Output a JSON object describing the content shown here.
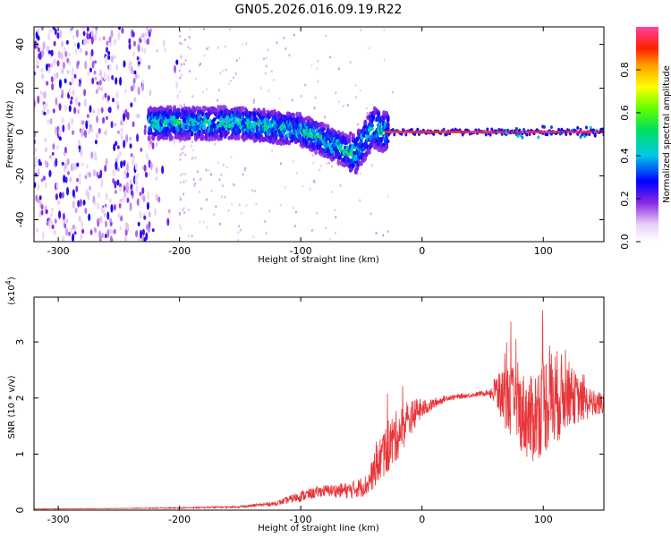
{
  "title": "GN05.2026.016.09.19.R22",
  "chart_data": [
    {
      "type": "heatmap",
      "xlabel": "Height of straight line (km)",
      "ylabel": "Frequency (Hz)",
      "xlim": [
        -320,
        150
      ],
      "ylim": [
        -50,
        48
      ],
      "xticks": [
        -300,
        -200,
        -100,
        0,
        100
      ],
      "yticks": [
        -40,
        -20,
        0,
        20,
        40
      ],
      "colorbar": {
        "label": "Normalized spectral amplitude",
        "range": [
          0,
          1
        ],
        "ticks": [
          0.0,
          0.2,
          0.4,
          0.6,
          0.8
        ],
        "tick_labels": [
          "0.0",
          "0.2",
          "0.4",
          "0.6",
          "0.8"
        ]
      },
      "features": [
        {
          "region": "x -320 to -220",
          "description": "scattered low-amplitude noise across full band",
          "amplitude": 0.15
        },
        {
          "region": "x -220 to -30",
          "freq_center": 5,
          "description": "band drifting from +5 Hz down to -15 Hz",
          "amplitude": 0.3
        },
        {
          "region": "x -30 to 150",
          "freq_center": 0,
          "description": "narrow line at 0 Hz",
          "amplitude": 0.95
        }
      ]
    },
    {
      "type": "line",
      "xlabel": "Height of straight line (km)",
      "ylabel": "SNR (10 * v/v)",
      "multiplier_label": "(x10",
      "multiplier_exp": "4",
      "multiplier_close": ")",
      "xlim": [
        -320,
        150
      ],
      "ylim": [
        0,
        3.8
      ],
      "xticks": [
        -300,
        -200,
        -100,
        0,
        100
      ],
      "yticks": [
        0,
        1,
        2,
        3
      ],
      "series": [
        {
          "color": "#e8363a",
          "x": [
            -320,
            -250,
            -200,
            -150,
            -120,
            -100,
            -80,
            -60,
            -45,
            -35,
            -25,
            -15,
            -5,
            5,
            20,
            40,
            55,
            60,
            70,
            80,
            90,
            100,
            110,
            120,
            130,
            140,
            150
          ],
          "y": [
            0.02,
            0.03,
            0.04,
            0.06,
            0.12,
            0.25,
            0.35,
            0.35,
            0.45,
            0.9,
            1.2,
            1.5,
            1.75,
            1.85,
            2.0,
            2.05,
            2.1,
            2.1,
            2.0,
            1.8,
            1.6,
            1.9,
            2.0,
            2.1,
            1.95,
            1.9,
            1.9
          ],
          "noise": [
            0.005,
            0.005,
            0.01,
            0.02,
            0.04,
            0.1,
            0.1,
            0.15,
            0.2,
            0.4,
            0.5,
            0.4,
            0.25,
            0.12,
            0.05,
            0.04,
            0.05,
            0.3,
            0.6,
            0.7,
            0.8,
            0.9,
            0.9,
            0.6,
            0.4,
            0.25,
            0.2
          ]
        }
      ]
    }
  ]
}
